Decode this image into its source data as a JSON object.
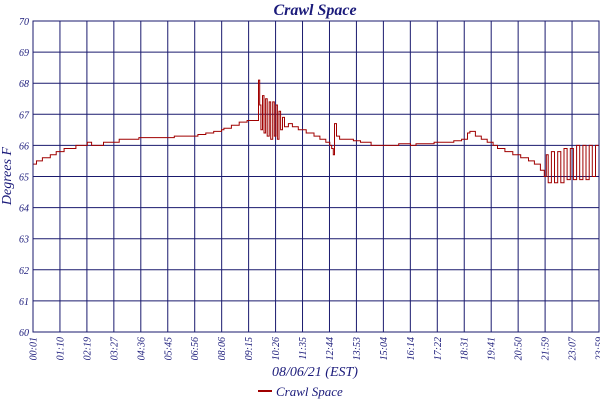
{
  "chart_data": {
    "type": "line",
    "title": "Crawl Space",
    "xlabel": "08/06/21 (EST)",
    "ylabel": "Degrees F",
    "ylim": [
      60,
      70
    ],
    "yticks": [
      60,
      61,
      62,
      63,
      64,
      65,
      66,
      67,
      68,
      69,
      70
    ],
    "xlim": [
      "00:01",
      "23:59"
    ],
    "xtick_labels": [
      "00:01",
      "01:10",
      "02:19",
      "03:27",
      "04:36",
      "05:45",
      "06:56",
      "08:06",
      "09:15",
      "10:26",
      "11:35",
      "12:44",
      "13:53",
      "15:04",
      "16:14",
      "17:22",
      "18:31",
      "19:41",
      "20:50",
      "21:59",
      "23:07",
      "23:59"
    ],
    "grid": true,
    "legend": {
      "position": "bottom-center",
      "entries": [
        "Crawl Space"
      ]
    },
    "series": [
      {
        "name": "Crawl Space",
        "color": "#a00000",
        "points": [
          [
            "00:01",
            65.4
          ],
          [
            "00:10",
            65.5
          ],
          [
            "00:25",
            65.6
          ],
          [
            "00:45",
            65.7
          ],
          [
            "01:00",
            65.8
          ],
          [
            "01:20",
            65.9
          ],
          [
            "01:50",
            66.0
          ],
          [
            "02:15",
            66.0
          ],
          [
            "02:19",
            66.1
          ],
          [
            "02:30",
            66.0
          ],
          [
            "02:45",
            66.0
          ],
          [
            "03:00",
            66.1
          ],
          [
            "03:20",
            66.1
          ],
          [
            "03:40",
            66.2
          ],
          [
            "04:00",
            66.2
          ],
          [
            "04:30",
            66.25
          ],
          [
            "05:00",
            66.25
          ],
          [
            "05:30",
            66.25
          ],
          [
            "06:00",
            66.3
          ],
          [
            "06:30",
            66.3
          ],
          [
            "07:00",
            66.35
          ],
          [
            "07:20",
            66.4
          ],
          [
            "07:40",
            66.45
          ],
          [
            "08:00",
            66.5
          ],
          [
            "08:06",
            66.55
          ],
          [
            "08:25",
            66.65
          ],
          [
            "08:45",
            66.75
          ],
          [
            "09:05",
            66.8
          ],
          [
            "09:30",
            66.8
          ],
          [
            "09:34",
            68.1
          ],
          [
            "09:37",
            67.3
          ],
          [
            "09:40",
            66.5
          ],
          [
            "09:44",
            67.6
          ],
          [
            "09:48",
            66.4
          ],
          [
            "09:52",
            67.5
          ],
          [
            "09:56",
            66.3
          ],
          [
            "10:01",
            67.4
          ],
          [
            "10:05",
            66.2
          ],
          [
            "10:10",
            67.4
          ],
          [
            "10:14",
            66.3
          ],
          [
            "10:18",
            67.3
          ],
          [
            "10:22",
            66.2
          ],
          [
            "10:26",
            67.1
          ],
          [
            "10:30",
            66.5
          ],
          [
            "10:35",
            66.9
          ],
          [
            "10:40",
            66.6
          ],
          [
            "10:50",
            66.7
          ],
          [
            "11:00",
            66.6
          ],
          [
            "11:15",
            66.5
          ],
          [
            "11:35",
            66.4
          ],
          [
            "11:55",
            66.3
          ],
          [
            "12:10",
            66.2
          ],
          [
            "12:25",
            66.1
          ],
          [
            "12:35",
            66.0
          ],
          [
            "12:40",
            65.9
          ],
          [
            "12:44",
            65.7
          ],
          [
            "12:47",
            66.7
          ],
          [
            "12:52",
            66.3
          ],
          [
            "13:00",
            66.2
          ],
          [
            "13:15",
            66.2
          ],
          [
            "13:35",
            66.15
          ],
          [
            "13:53",
            66.1
          ],
          [
            "14:20",
            66.0
          ],
          [
            "14:50",
            66.0
          ],
          [
            "15:04",
            66.0
          ],
          [
            "15:30",
            66.05
          ],
          [
            "16:00",
            66.0
          ],
          [
            "16:14",
            66.05
          ],
          [
            "16:45",
            66.05
          ],
          [
            "17:00",
            66.1
          ],
          [
            "17:22",
            66.1
          ],
          [
            "17:50",
            66.15
          ],
          [
            "18:10",
            66.2
          ],
          [
            "18:25",
            66.4
          ],
          [
            "18:31",
            66.45
          ],
          [
            "18:45",
            66.3
          ],
          [
            "19:00",
            66.2
          ],
          [
            "19:15",
            66.1
          ],
          [
            "19:30",
            66.0
          ],
          [
            "19:41",
            65.9
          ],
          [
            "20:00",
            65.8
          ],
          [
            "20:20",
            65.7
          ],
          [
            "20:40",
            65.6
          ],
          [
            "21:00",
            65.5
          ],
          [
            "21:15",
            65.4
          ],
          [
            "21:30",
            65.2
          ],
          [
            "21:40",
            65.0
          ],
          [
            "21:45",
            65.7
          ],
          [
            "21:50",
            64.8
          ],
          [
            "21:58",
            65.8
          ],
          [
            "22:06",
            64.8
          ],
          [
            "22:14",
            65.8
          ],
          [
            "22:22",
            64.8
          ],
          [
            "22:30",
            65.9
          ],
          [
            "22:38",
            64.9
          ],
          [
            "22:46",
            65.9
          ],
          [
            "22:54",
            64.9
          ],
          [
            "23:02",
            66.0
          ],
          [
            "23:10",
            64.9
          ],
          [
            "23:18",
            66.0
          ],
          [
            "23:26",
            64.9
          ],
          [
            "23:34",
            66.0
          ],
          [
            "23:42",
            65.0
          ],
          [
            "23:50",
            66.0
          ],
          [
            "23:59",
            65.0
          ]
        ]
      }
    ]
  }
}
